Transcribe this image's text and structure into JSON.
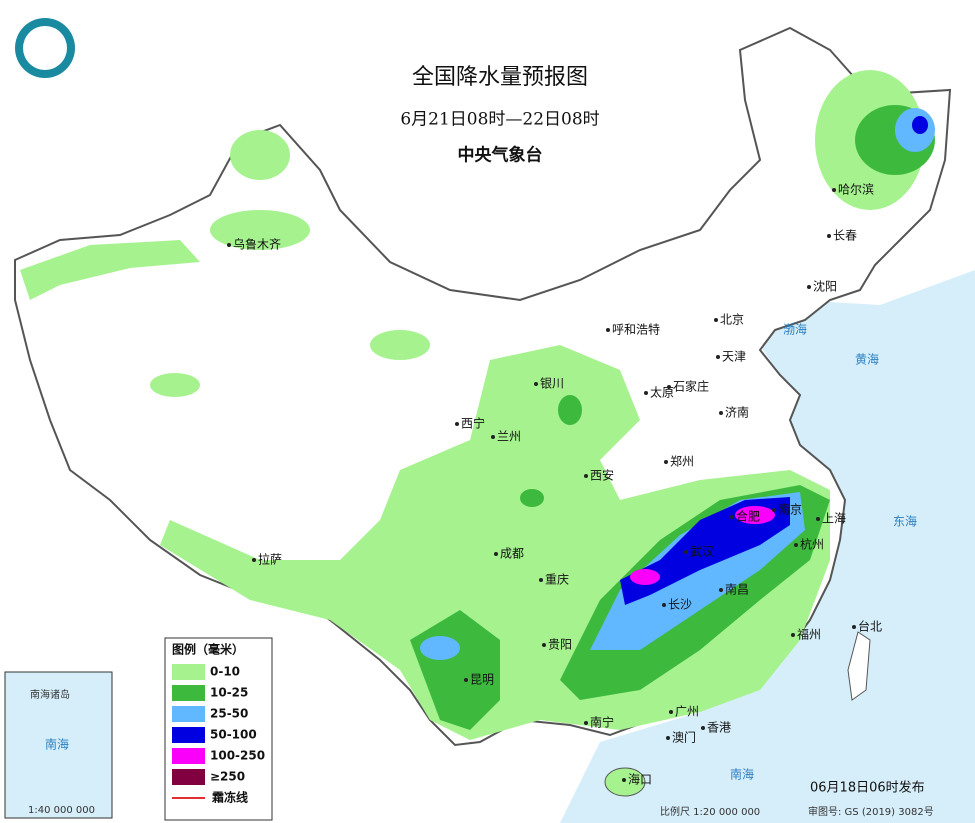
{
  "header": {
    "title": "全国降水量预报图",
    "period": "6月21日08时—22日08时",
    "issuer": "中央气象台"
  },
  "legend": {
    "title": "图例（毫米）",
    "items": [
      {
        "label": "0-10",
        "color": "#a6f28f"
      },
      {
        "label": "10-25",
        "color": "#3dba3d"
      },
      {
        "label": "25-50",
        "color": "#61b8ff"
      },
      {
        "label": "50-100",
        "color": "#0000e1"
      },
      {
        "label": "100-250",
        "color": "#fa00fa"
      },
      {
        "label": "≥250",
        "color": "#800040"
      },
      {
        "label": "霜冻线",
        "color": "#e03030"
      }
    ]
  },
  "cities": [
    "乌鲁木齐",
    "哈尔滨",
    "长春",
    "沈阳",
    "呼和浩特",
    "北京",
    "天津",
    "银川",
    "太原",
    "石家庄",
    "济南",
    "西宁",
    "兰州",
    "郑州",
    "西安",
    "合肥",
    "南京",
    "上海",
    "成都",
    "武汉",
    "杭州",
    "重庆",
    "长沙",
    "南昌",
    "拉萨",
    "福州",
    "台北",
    "贵阳",
    "昆明",
    "南宁",
    "广州",
    "澳门",
    "香港",
    "海口"
  ],
  "seas": [
    "渤海",
    "黄海",
    "东海",
    "南海"
  ],
  "inset": {
    "title": "南海诸岛",
    "scale": "1:40 000 000",
    "sea": "南海"
  },
  "footer": {
    "issued": "06月18日06时发布",
    "scale": "比例尺 1:20 000 000",
    "approval": "审图号: GS (2019) 3082号"
  }
}
